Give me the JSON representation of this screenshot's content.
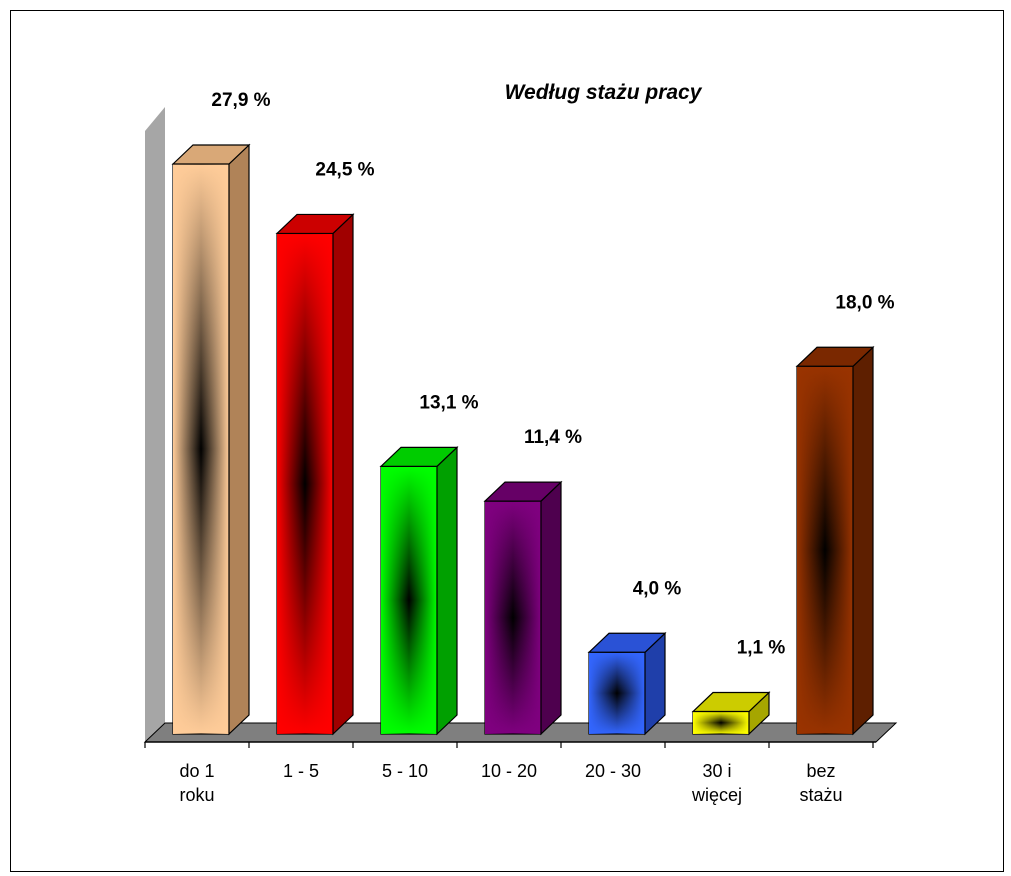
{
  "chart_data": {
    "type": "bar",
    "title": "Według stażu pracy",
    "xlabel": "",
    "ylabel": "",
    "ylim": [
      0,
      27.9
    ],
    "grid": false,
    "legend": "none",
    "categories": [
      [
        "do 1",
        "roku"
      ],
      [
        "1 - 5"
      ],
      [
        "5 - 10"
      ],
      [
        "10 - 20"
      ],
      [
        "20 - 30"
      ],
      [
        "30 i",
        "więcej"
      ],
      [
        "bez",
        "stażu"
      ]
    ],
    "values": [
      27.9,
      24.5,
      13.1,
      11.4,
      4.0,
      1.1,
      18.0
    ],
    "value_labels": [
      "27,9 %",
      "24,5 %",
      "13,1 %",
      "11,4 %",
      "4,0 %",
      "1,1 %",
      "18,0 %"
    ],
    "colors": [
      {
        "front": "#FFCC99",
        "side": "#B08358",
        "top": "#D9A877"
      },
      {
        "front": "#FF0000",
        "side": "#A00000",
        "top": "#CC0000"
      },
      {
        "front": "#00FF00",
        "side": "#00A000",
        "top": "#00CC00"
      },
      {
        "front": "#800080",
        "side": "#4E004E",
        "top": "#660066"
      },
      {
        "front": "#3366FF",
        "side": "#1F3FAA",
        "top": "#2A52D6"
      },
      {
        "front": "#FFFF00",
        "side": "#A6A600",
        "top": "#CCCC00"
      },
      {
        "front": "#993300",
        "side": "#5E1F00",
        "top": "#7A2800"
      }
    ],
    "wall_color": "#A6A6A6",
    "floor_color": "#7F7F7F"
  }
}
